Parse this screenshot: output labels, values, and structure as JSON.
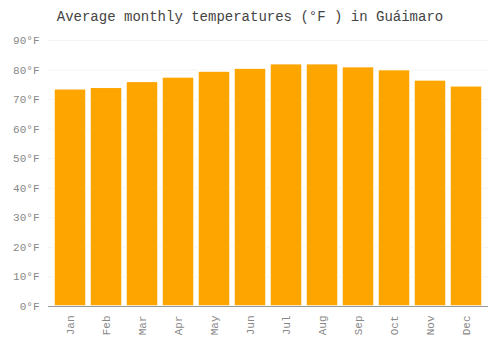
{
  "chart_data": {
    "type": "bar",
    "title": "Average monthly temperatures (°F ) in Guáimaro",
    "categories": [
      "Jan",
      "Feb",
      "Mar",
      "Apr",
      "May",
      "Jun",
      "Jul",
      "Aug",
      "Sep",
      "Oct",
      "Nov",
      "Dec"
    ],
    "values": [
      73.5,
      74.0,
      76.0,
      77.5,
      79.5,
      80.5,
      82.0,
      82.0,
      81.0,
      80.0,
      76.5,
      74.5
    ],
    "color": "#FFA500",
    "ylim": [
      0,
      90
    ],
    "yticks": [
      {
        "value": 0,
        "label": "0°F"
      },
      {
        "value": 10,
        "label": "10°F"
      },
      {
        "value": 20,
        "label": "20°F"
      },
      {
        "value": 30,
        "label": "30°F"
      },
      {
        "value": 40,
        "label": "40°F"
      },
      {
        "value": 50,
        "label": "50°F"
      },
      {
        "value": 60,
        "label": "60°F"
      },
      {
        "value": 70,
        "label": "70°F"
      },
      {
        "value": 80,
        "label": "80°F"
      },
      {
        "value": 90,
        "label": "90°F"
      }
    ],
    "grid": true
  }
}
